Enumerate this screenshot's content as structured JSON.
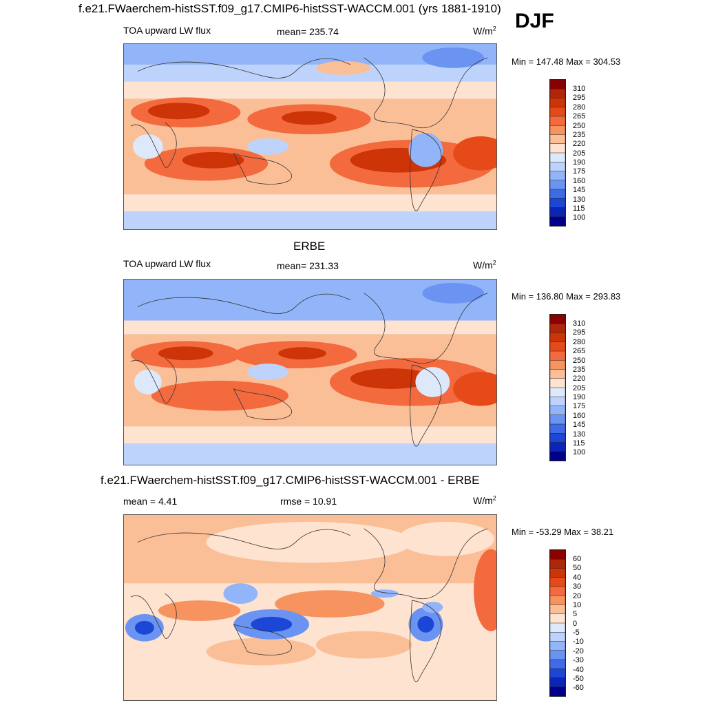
{
  "season": "DJF",
  "panels": [
    {
      "title": "f.e21.FWaerchem-histSST.f09_g17.CMIP6-histSST-WACCM.001 (yrs 1881-1910)",
      "left_label": "TOA upward LW flux",
      "center_label": "mean= 235.74",
      "unit_base": "W/m",
      "unit_exp": "2",
      "minmax": "Min = 147.48 Max = 304.53",
      "legend": [
        "310",
        "295",
        "280",
        "265",
        "250",
        "235",
        "220",
        "205",
        "190",
        "175",
        "160",
        "145",
        "130",
        "115",
        "100"
      ],
      "map_name": "model-olr-map"
    },
    {
      "title": "ERBE",
      "left_label": "TOA upward LW flux",
      "center_label": "mean= 231.33",
      "unit_base": "W/m",
      "unit_exp": "2",
      "minmax": "Min = 136.80 Max = 293.83",
      "legend": [
        "310",
        "295",
        "280",
        "265",
        "250",
        "235",
        "220",
        "205",
        "190",
        "175",
        "160",
        "145",
        "130",
        "115",
        "100"
      ],
      "map_name": "erbe-olr-map"
    },
    {
      "title": "f.e21.FWaerchem-histSST.f09_g17.CMIP6-histSST-WACCM.001 - ERBE",
      "left_label": "mean =   4.41",
      "center_label": "rmse =  10.91",
      "unit_base": "W/m",
      "unit_exp": "2",
      "minmax": "Min = -53.29 Max =  38.21",
      "legend": [
        "60",
        "50",
        "40",
        "30",
        "20",
        "10",
        "5",
        "0",
        "-5",
        "-10",
        "-20",
        "-30",
        "-40",
        "-50",
        "-60"
      ],
      "map_name": "difference-map"
    }
  ],
  "colors": {
    "abs_scale": [
      "#8b0000",
      "#b0260b",
      "#cd3407",
      "#e64a19",
      "#f26a3d",
      "#f7935f",
      "#fbbf98",
      "#fde3d0",
      "#dde9fb",
      "#bdd3fb",
      "#92b4f8",
      "#6a93f2",
      "#3f6be6",
      "#1b46d6",
      "#0a25b8",
      "#00008b"
    ],
    "diff_scale": [
      "#8b0000",
      "#b0260b",
      "#cd3407",
      "#e64a19",
      "#f26a3d",
      "#f7935f",
      "#fbbf98",
      "#fde3d0",
      "#dde9fb",
      "#bdd3fb",
      "#92b4f8",
      "#6a93f2",
      "#3f6be6",
      "#1b46d6",
      "#0a25b8",
      "#00008b"
    ]
  }
}
